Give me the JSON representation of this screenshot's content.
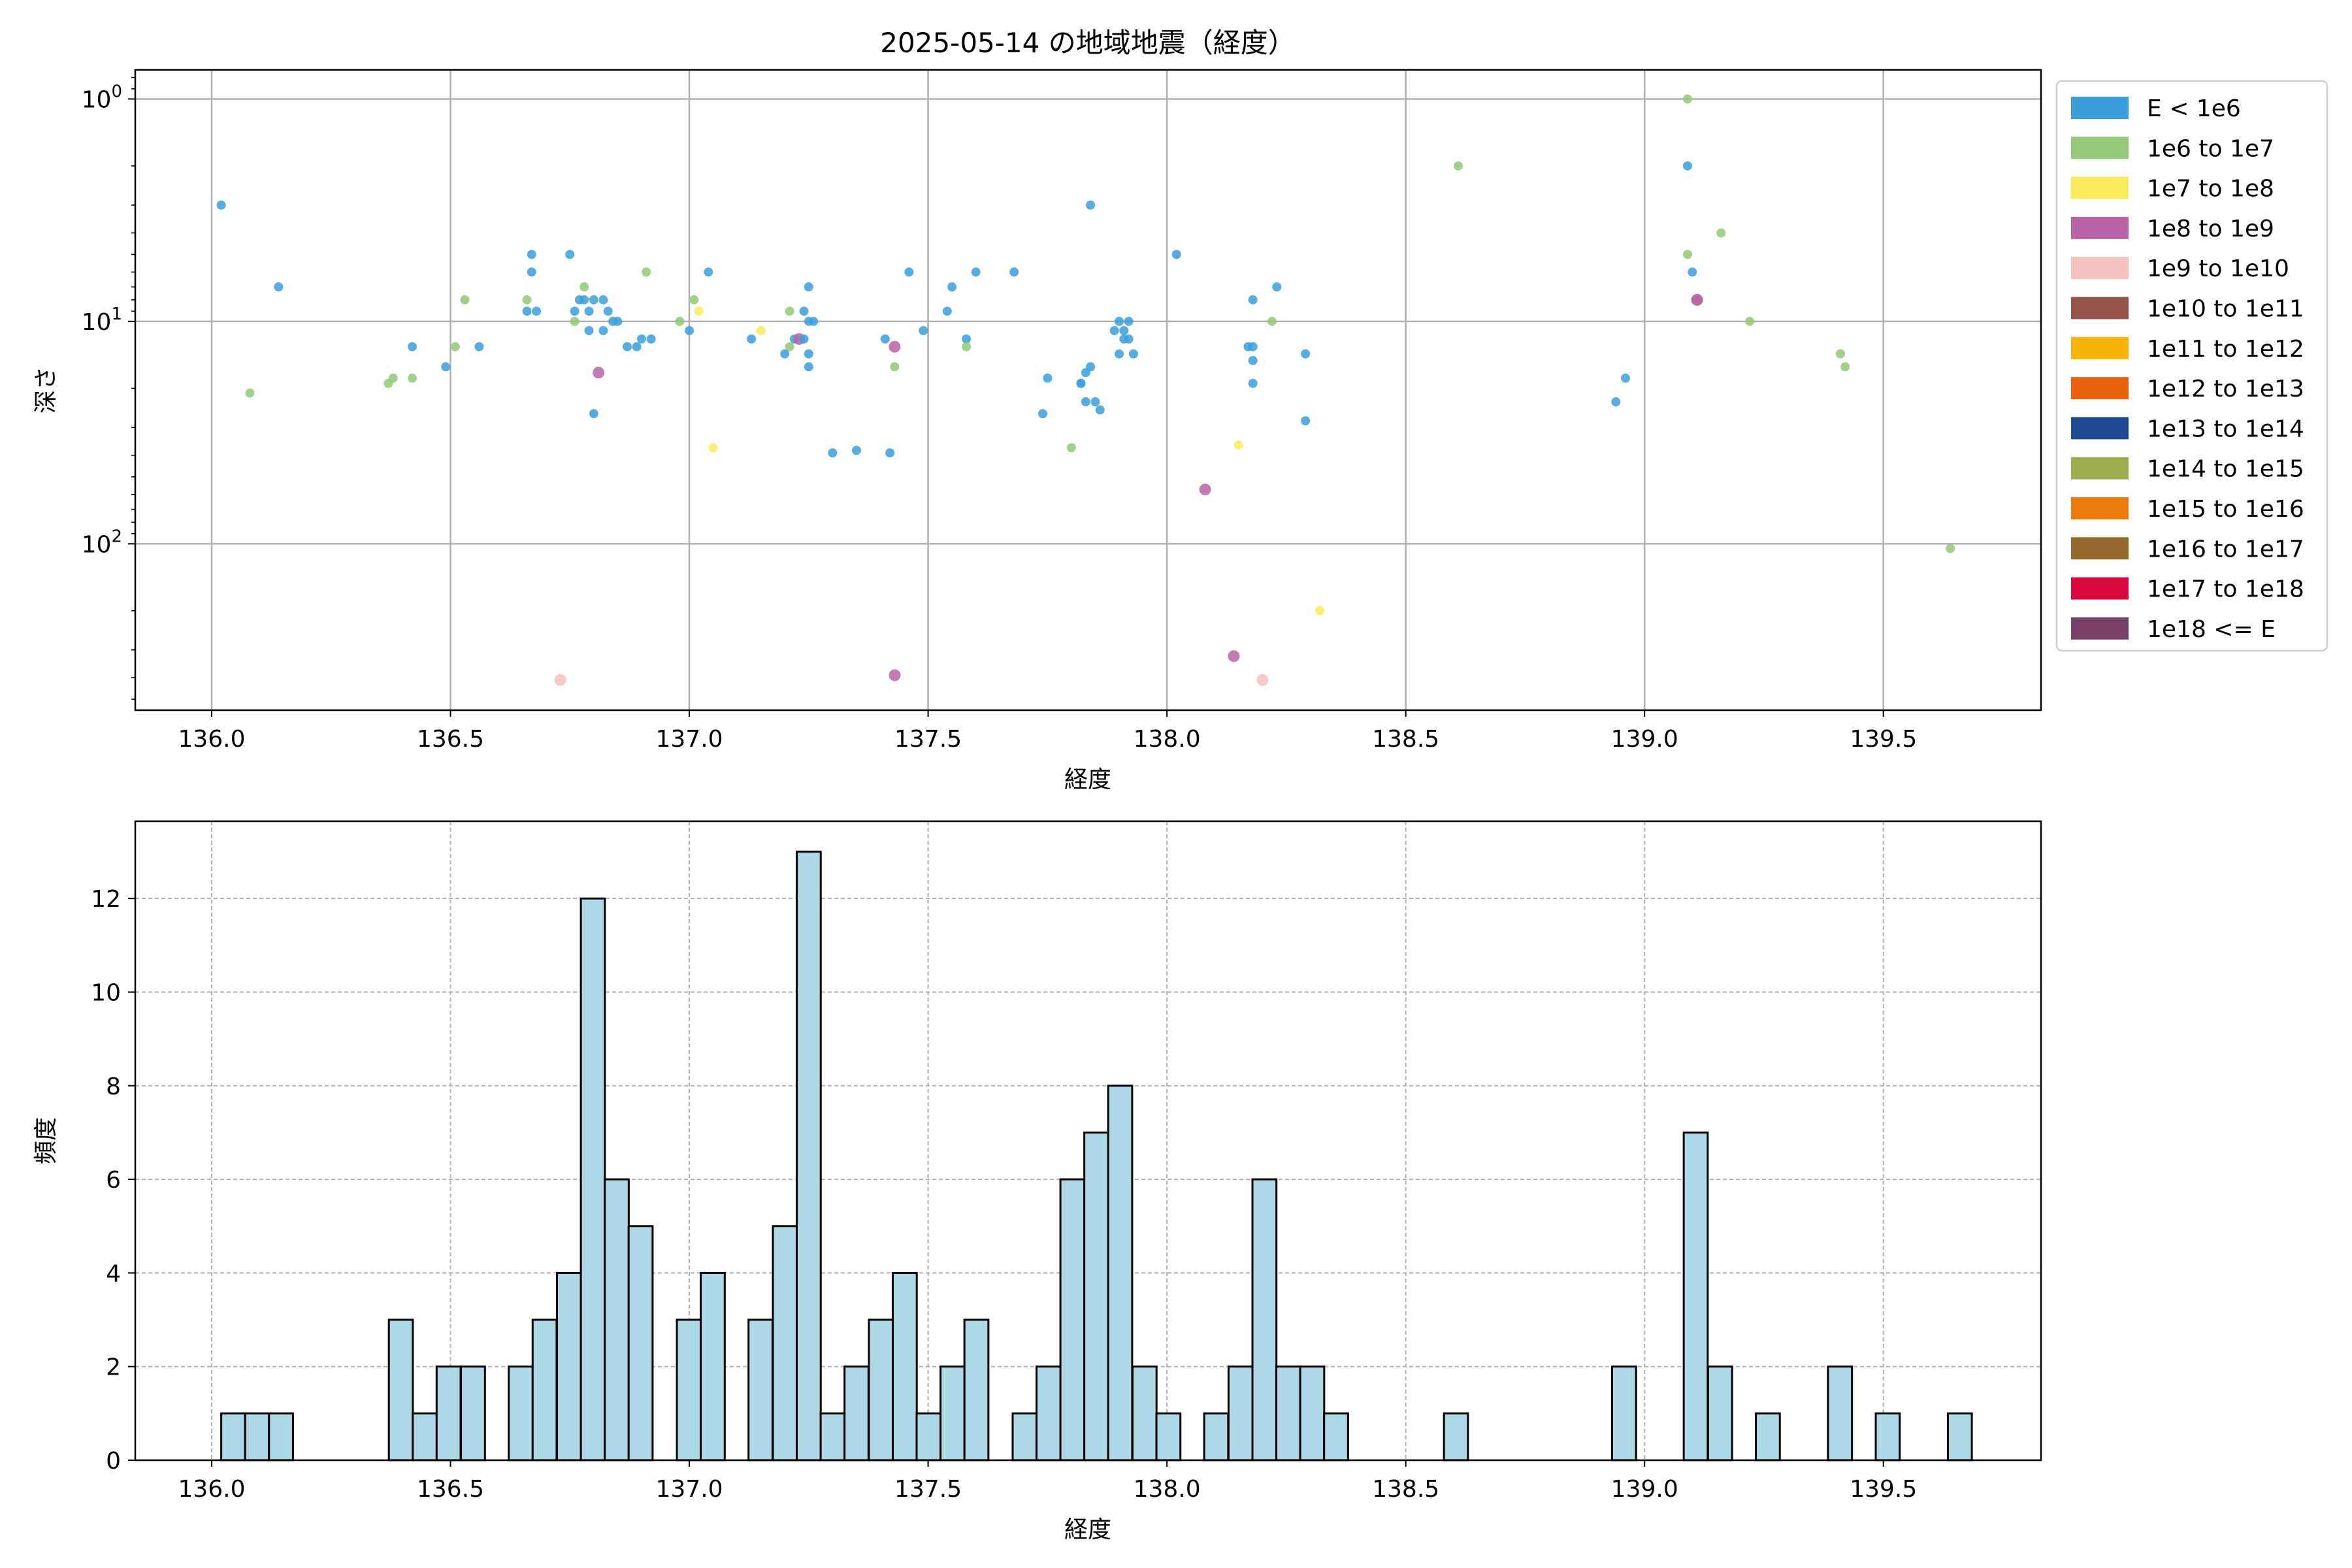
{
  "chart_data": [
    {
      "type": "scatter",
      "title": "2025-05-14 の地域地震（経度）",
      "xlabel": "経度",
      "ylabel": "深さ",
      "xlim": [
        135.84,
        139.83
      ],
      "ylim": [
        560,
        0.74
      ],
      "yscale": "log",
      "y_inverted": true,
      "grid": true,
      "x_ticks": [
        136.0,
        136.5,
        137.0,
        137.5,
        138.0,
        138.5,
        139.0,
        139.5
      ],
      "x_tick_labels": [
        "136.0",
        "136.5",
        "137.0",
        "137.5",
        "138.0",
        "138.5",
        "139.0",
        "139.5"
      ],
      "y_ticks": [
        {
          "value": 1,
          "base": "10",
          "exp": "0"
        },
        {
          "value": 10,
          "base": "10",
          "exp": "1"
        },
        {
          "value": 100,
          "base": "10",
          "exp": "2"
        }
      ],
      "legend": {
        "position": "outside-right-top",
        "entries": [
          {
            "label": "E < 1e6",
            "color": "#3a9fdb"
          },
          {
            "label": "1e6 to 1e7",
            "color": "#93c977"
          },
          {
            "label": "1e7 to 1e8",
            "color": "#fbea5b"
          },
          {
            "label": "1e8 to 1e9",
            "color": "#b964a6"
          },
          {
            "label": "1e9 to 1e10",
            "color": "#f5c2bd"
          },
          {
            "label": "1e10 to 1e11",
            "color": "#955449"
          },
          {
            "label": "1e11 to 1e12",
            "color": "#f7b308"
          },
          {
            "label": "1e12 to 1e13",
            "color": "#ec610c"
          },
          {
            "label": "1e13 to 1e14",
            "color": "#1d4a91"
          },
          {
            "label": "1e14 to 1e15",
            "color": "#9dad4e"
          },
          {
            "label": "1e15 to 1e16",
            "color": "#ec7b0c"
          },
          {
            "label": "1e16 to 1e17",
            "color": "#956a2c"
          },
          {
            "label": "1e17 to 1e18",
            "color": "#db083e"
          },
          {
            "label": "1e18 <= E",
            "color": "#784068"
          }
        ]
      },
      "points": [
        {
          "x": 136.02,
          "y": 3.0,
          "c": 0
        },
        {
          "x": 136.14,
          "y": 7.0,
          "c": 0
        },
        {
          "x": 136.08,
          "y": 21,
          "c": 1
        },
        {
          "x": 136.37,
          "y": 19,
          "c": 1
        },
        {
          "x": 136.38,
          "y": 18,
          "c": 1
        },
        {
          "x": 136.42,
          "y": 13,
          "c": 0
        },
        {
          "x": 136.42,
          "y": 18,
          "c": 1
        },
        {
          "x": 136.49,
          "y": 16,
          "c": 0
        },
        {
          "x": 136.51,
          "y": 13,
          "c": 1
        },
        {
          "x": 136.53,
          "y": 8,
          "c": 1
        },
        {
          "x": 136.56,
          "y": 13,
          "c": 0
        },
        {
          "x": 136.66,
          "y": 8,
          "c": 1
        },
        {
          "x": 136.66,
          "y": 9,
          "c": 0
        },
        {
          "x": 136.67,
          "y": 5,
          "c": 0
        },
        {
          "x": 136.67,
          "y": 6,
          "c": 0
        },
        {
          "x": 136.68,
          "y": 9,
          "c": 0
        },
        {
          "x": 136.75,
          "y": 5,
          "c": 0
        },
        {
          "x": 136.76,
          "y": 9,
          "c": 0
        },
        {
          "x": 136.76,
          "y": 10,
          "c": 1
        },
        {
          "x": 136.77,
          "y": 8,
          "c": 0
        },
        {
          "x": 136.78,
          "y": 7,
          "c": 1
        },
        {
          "x": 136.78,
          "y": 8,
          "c": 0
        },
        {
          "x": 136.79,
          "y": 9,
          "c": 0
        },
        {
          "x": 136.79,
          "y": 11,
          "c": 0
        },
        {
          "x": 136.8,
          "y": 8,
          "c": 0
        },
        {
          "x": 136.8,
          "y": 26,
          "c": 0
        },
        {
          "x": 136.81,
          "y": 17,
          "c": 3
        },
        {
          "x": 136.82,
          "y": 8,
          "c": 0
        },
        {
          "x": 136.82,
          "y": 11,
          "c": 0
        },
        {
          "x": 136.83,
          "y": 9,
          "c": 0
        },
        {
          "x": 136.84,
          "y": 10,
          "c": 0
        },
        {
          "x": 136.85,
          "y": 10,
          "c": 0
        },
        {
          "x": 136.87,
          "y": 13,
          "c": 0
        },
        {
          "x": 136.89,
          "y": 13,
          "c": 0
        },
        {
          "x": 136.9,
          "y": 12,
          "c": 0
        },
        {
          "x": 136.91,
          "y": 6,
          "c": 1
        },
        {
          "x": 136.92,
          "y": 12,
          "c": 0
        },
        {
          "x": 136.73,
          "y": 410,
          "c": 4
        },
        {
          "x": 136.98,
          "y": 10,
          "c": 1
        },
        {
          "x": 137.0,
          "y": 11,
          "c": 0
        },
        {
          "x": 137.01,
          "y": 8,
          "c": 1
        },
        {
          "x": 137.02,
          "y": 9,
          "c": 2
        },
        {
          "x": 137.04,
          "y": 6,
          "c": 0
        },
        {
          "x": 137.05,
          "y": 37,
          "c": 2
        },
        {
          "x": 137.13,
          "y": 12,
          "c": 0
        },
        {
          "x": 137.15,
          "y": 11,
          "c": 2
        },
        {
          "x": 137.2,
          "y": 14,
          "c": 0
        },
        {
          "x": 137.21,
          "y": 9,
          "c": 1
        },
        {
          "x": 137.21,
          "y": 13,
          "c": 1
        },
        {
          "x": 137.22,
          "y": 12,
          "c": 0
        },
        {
          "x": 137.23,
          "y": 12,
          "c": 3
        },
        {
          "x": 137.24,
          "y": 9,
          "c": 0
        },
        {
          "x": 137.24,
          "y": 12,
          "c": 0
        },
        {
          "x": 137.25,
          "y": 7,
          "c": 0
        },
        {
          "x": 137.25,
          "y": 10,
          "c": 0
        },
        {
          "x": 137.25,
          "y": 14,
          "c": 0
        },
        {
          "x": 137.25,
          "y": 16,
          "c": 0
        },
        {
          "x": 137.26,
          "y": 10,
          "c": 0
        },
        {
          "x": 137.3,
          "y": 39,
          "c": 0
        },
        {
          "x": 137.35,
          "y": 38,
          "c": 0
        },
        {
          "x": 137.41,
          "y": 12,
          "c": 0
        },
        {
          "x": 137.42,
          "y": 39,
          "c": 0
        },
        {
          "x": 137.43,
          "y": 13,
          "c": 3
        },
        {
          "x": 137.43,
          "y": 16,
          "c": 1
        },
        {
          "x": 137.43,
          "y": 390,
          "c": 3
        },
        {
          "x": 137.46,
          "y": 6,
          "c": 0
        },
        {
          "x": 137.49,
          "y": 11,
          "c": 0
        },
        {
          "x": 137.54,
          "y": 9,
          "c": 0
        },
        {
          "x": 137.55,
          "y": 7,
          "c": 0
        },
        {
          "x": 137.58,
          "y": 12,
          "c": 0
        },
        {
          "x": 137.58,
          "y": 13,
          "c": 1
        },
        {
          "x": 137.6,
          "y": 6,
          "c": 0
        },
        {
          "x": 137.68,
          "y": 6,
          "c": 0
        },
        {
          "x": 137.74,
          "y": 26,
          "c": 0
        },
        {
          "x": 137.75,
          "y": 18,
          "c": 0
        },
        {
          "x": 137.8,
          "y": 37,
          "c": 1
        },
        {
          "x": 137.82,
          "y": 19,
          "c": 0
        },
        {
          "x": 137.82,
          "y": 19,
          "c": 0
        },
        {
          "x": 137.83,
          "y": 17,
          "c": 0
        },
        {
          "x": 137.83,
          "y": 23,
          "c": 0
        },
        {
          "x": 137.84,
          "y": 3.0,
          "c": 0
        },
        {
          "x": 137.84,
          "y": 16,
          "c": 0
        },
        {
          "x": 137.85,
          "y": 23,
          "c": 0
        },
        {
          "x": 137.86,
          "y": 25,
          "c": 0
        },
        {
          "x": 137.89,
          "y": 11,
          "c": 0
        },
        {
          "x": 137.9,
          "y": 10,
          "c": 0
        },
        {
          "x": 137.9,
          "y": 14,
          "c": 0
        },
        {
          "x": 137.91,
          "y": 11,
          "c": 0
        },
        {
          "x": 137.91,
          "y": 12,
          "c": 0
        },
        {
          "x": 137.92,
          "y": 12,
          "c": 0
        },
        {
          "x": 137.92,
          "y": 10,
          "c": 0
        },
        {
          "x": 137.93,
          "y": 14,
          "c": 0
        },
        {
          "x": 138.02,
          "y": 5,
          "c": 0
        },
        {
          "x": 138.08,
          "y": 57,
          "c": 3
        },
        {
          "x": 138.14,
          "y": 320,
          "c": 3
        },
        {
          "x": 138.15,
          "y": 36,
          "c": 2
        },
        {
          "x": 138.17,
          "y": 13,
          "c": 0
        },
        {
          "x": 138.18,
          "y": 8,
          "c": 0
        },
        {
          "x": 138.18,
          "y": 13,
          "c": 0
        },
        {
          "x": 138.18,
          "y": 15,
          "c": 0
        },
        {
          "x": 138.18,
          "y": 19,
          "c": 0
        },
        {
          "x": 138.2,
          "y": 410,
          "c": 4
        },
        {
          "x": 138.22,
          "y": 10,
          "c": 1
        },
        {
          "x": 138.23,
          "y": 7,
          "c": 0
        },
        {
          "x": 138.29,
          "y": 14,
          "c": 0
        },
        {
          "x": 138.29,
          "y": 28,
          "c": 0
        },
        {
          "x": 138.32,
          "y": 200,
          "c": 2
        },
        {
          "x": 138.61,
          "y": 2.0,
          "c": 1
        },
        {
          "x": 138.94,
          "y": 23,
          "c": 0
        },
        {
          "x": 138.96,
          "y": 18,
          "c": 0
        },
        {
          "x": 139.09,
          "y": 1.0,
          "c": 1
        },
        {
          "x": 139.09,
          "y": 2.0,
          "c": 0
        },
        {
          "x": 139.09,
          "y": 5,
          "c": 1
        },
        {
          "x": 139.1,
          "y": 6,
          "c": 0
        },
        {
          "x": 139.11,
          "y": 8,
          "c": 3
        },
        {
          "x": 139.11,
          "y": 8,
          "c": 3
        },
        {
          "x": 139.16,
          "y": 4,
          "c": 1
        },
        {
          "x": 139.22,
          "y": 10,
          "c": 1
        },
        {
          "x": 139.41,
          "y": 14,
          "c": 1
        },
        {
          "x": 139.42,
          "y": 16,
          "c": 1
        },
        {
          "x": 139.64,
          "y": 105,
          "c": 1
        }
      ]
    },
    {
      "type": "bar",
      "xlabel": "経度",
      "ylabel": "頻度",
      "xlim": [
        135.84,
        139.83
      ],
      "ylim": [
        0,
        13.65
      ],
      "grid": "dashed",
      "x_ticks": [
        136.0,
        136.5,
        137.0,
        137.5,
        138.0,
        138.5,
        139.0,
        139.5
      ],
      "x_tick_labels": [
        "136.0",
        "136.5",
        "137.0",
        "137.5",
        "138.0",
        "138.5",
        "139.0",
        "139.5"
      ],
      "y_ticks": [
        0,
        2,
        4,
        6,
        8,
        10,
        12
      ],
      "y_tick_labels": [
        "0",
        "2",
        "4",
        "6",
        "8",
        "10",
        "12"
      ],
      "bin_width": 0.0502,
      "bar_color": "#add8e6",
      "edge_color": "#000000",
      "bins": [
        {
          "start": 136.02,
          "count": 1
        },
        {
          "start": 136.07,
          "count": 1
        },
        {
          "start": 136.12,
          "count": 1
        },
        {
          "start": 136.371,
          "count": 3
        },
        {
          "start": 136.421,
          "count": 1
        },
        {
          "start": 136.471,
          "count": 2
        },
        {
          "start": 136.522,
          "count": 2
        },
        {
          "start": 136.622,
          "count": 2
        },
        {
          "start": 136.672,
          "count": 3
        },
        {
          "start": 136.723,
          "count": 4
        },
        {
          "start": 136.773,
          "count": 12
        },
        {
          "start": 136.823,
          "count": 6
        },
        {
          "start": 136.873,
          "count": 5
        },
        {
          "start": 136.974,
          "count": 3
        },
        {
          "start": 137.024,
          "count": 4
        },
        {
          "start": 137.124,
          "count": 3
        },
        {
          "start": 137.175,
          "count": 5
        },
        {
          "start": 137.225,
          "count": 13
        },
        {
          "start": 137.275,
          "count": 1
        },
        {
          "start": 137.325,
          "count": 2
        },
        {
          "start": 137.376,
          "count": 3
        },
        {
          "start": 137.426,
          "count": 4
        },
        {
          "start": 137.476,
          "count": 1
        },
        {
          "start": 137.526,
          "count": 2
        },
        {
          "start": 137.576,
          "count": 3
        },
        {
          "start": 137.677,
          "count": 1
        },
        {
          "start": 137.727,
          "count": 2
        },
        {
          "start": 137.777,
          "count": 6
        },
        {
          "start": 137.827,
          "count": 7
        },
        {
          "start": 137.877,
          "count": 8
        },
        {
          "start": 137.928,
          "count": 2
        },
        {
          "start": 137.978,
          "count": 1
        },
        {
          "start": 138.078,
          "count": 1
        },
        {
          "start": 138.129,
          "count": 2
        },
        {
          "start": 138.179,
          "count": 6
        },
        {
          "start": 138.229,
          "count": 2
        },
        {
          "start": 138.279,
          "count": 2
        },
        {
          "start": 138.329,
          "count": 1
        },
        {
          "start": 138.58,
          "count": 1
        },
        {
          "start": 138.932,
          "count": 2
        },
        {
          "start": 139.082,
          "count": 7
        },
        {
          "start": 139.133,
          "count": 2
        },
        {
          "start": 139.233,
          "count": 1
        },
        {
          "start": 139.384,
          "count": 2
        },
        {
          "start": 139.484,
          "count": 1
        },
        {
          "start": 139.635,
          "count": 1
        }
      ]
    }
  ]
}
